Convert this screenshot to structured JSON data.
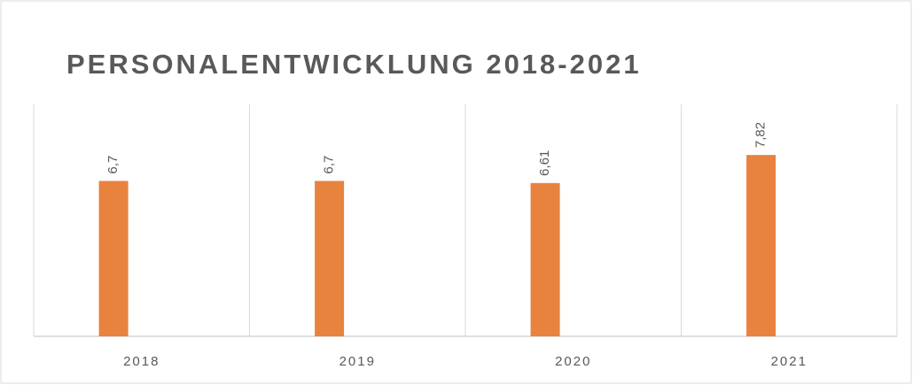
{
  "chart_data": {
    "type": "bar",
    "title": "PERSONALENTWICKLUNG 2018-2021",
    "categories": [
      "2018",
      "2019",
      "2020",
      "2021"
    ],
    "values": [
      6.7,
      6.7,
      6.61,
      7.82
    ],
    "value_labels": [
      "6,7",
      "6,7",
      "6,61",
      "7,82"
    ],
    "color": "#e8823f",
    "ylim": [
      0,
      10
    ]
  }
}
